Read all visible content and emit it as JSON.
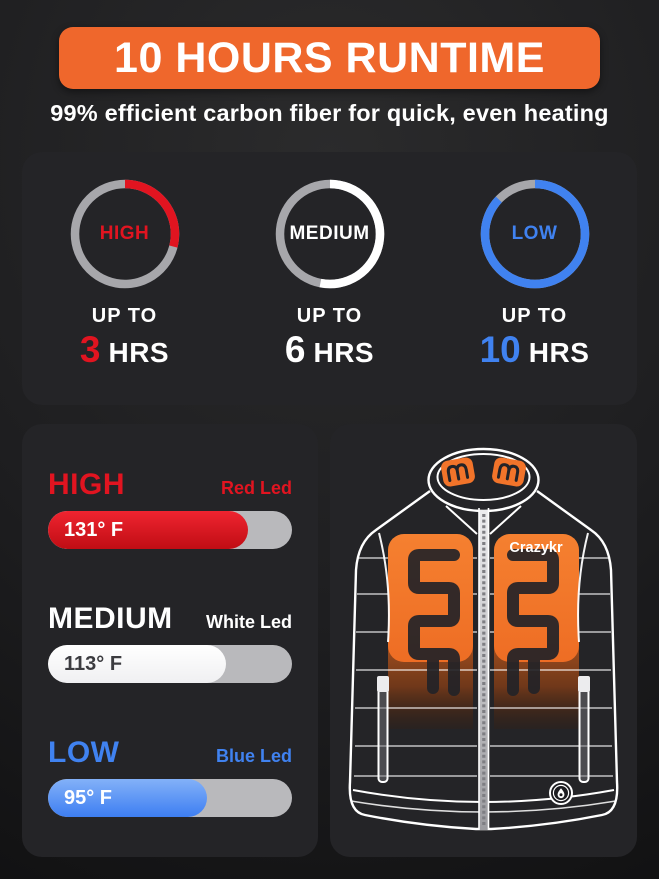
{
  "header": {
    "title": "10 HOURS RUNTIME",
    "subtitle": "99% efficient carbon fiber for quick, even heating",
    "banner_color": "#ef672c"
  },
  "runtime_card": {
    "ring_track_color": "#a7a7ab",
    "modes": [
      {
        "label": "HIGH",
        "up_to": "UP TO",
        "hours": "3",
        "unit": "HRS",
        "color": "#e11420",
        "ring_percent": 29
      },
      {
        "label": "MEDIUM",
        "up_to": "UP TO",
        "hours": "6",
        "unit": "HRS",
        "color": "#ffffff",
        "ring_percent": 53
      },
      {
        "label": "LOW",
        "up_to": "UP TO",
        "hours": "10",
        "unit": "HRS",
        "color": "#4082f0",
        "ring_percent": 87
      }
    ]
  },
  "temperature_card": {
    "track_color": "#b9b9bc",
    "rows": [
      {
        "label": "HIGH",
        "led": "Red Led",
        "temp": "131° F",
        "fill_percent": 82,
        "color": "#e11420",
        "fill_from": "#ef2430",
        "fill_to": "#c00d14",
        "temp_text_color": "#ffffff"
      },
      {
        "label": "MEDIUM",
        "led": "White Led",
        "temp": "113° F",
        "fill_percent": 73,
        "color": "#ffffff",
        "fill_from": "#ffffff",
        "fill_to": "#f0f0f2",
        "temp_text_color": "#3c3c40"
      },
      {
        "label": "LOW",
        "led": "Blue Led",
        "temp": "95° F",
        "fill_percent": 65,
        "color": "#4082f0",
        "fill_from": "#83b1f8",
        "fill_to": "#3d7ef2",
        "temp_text_color": "#ffffff"
      }
    ]
  },
  "vest_card": {
    "brand": "Crazykr"
  }
}
